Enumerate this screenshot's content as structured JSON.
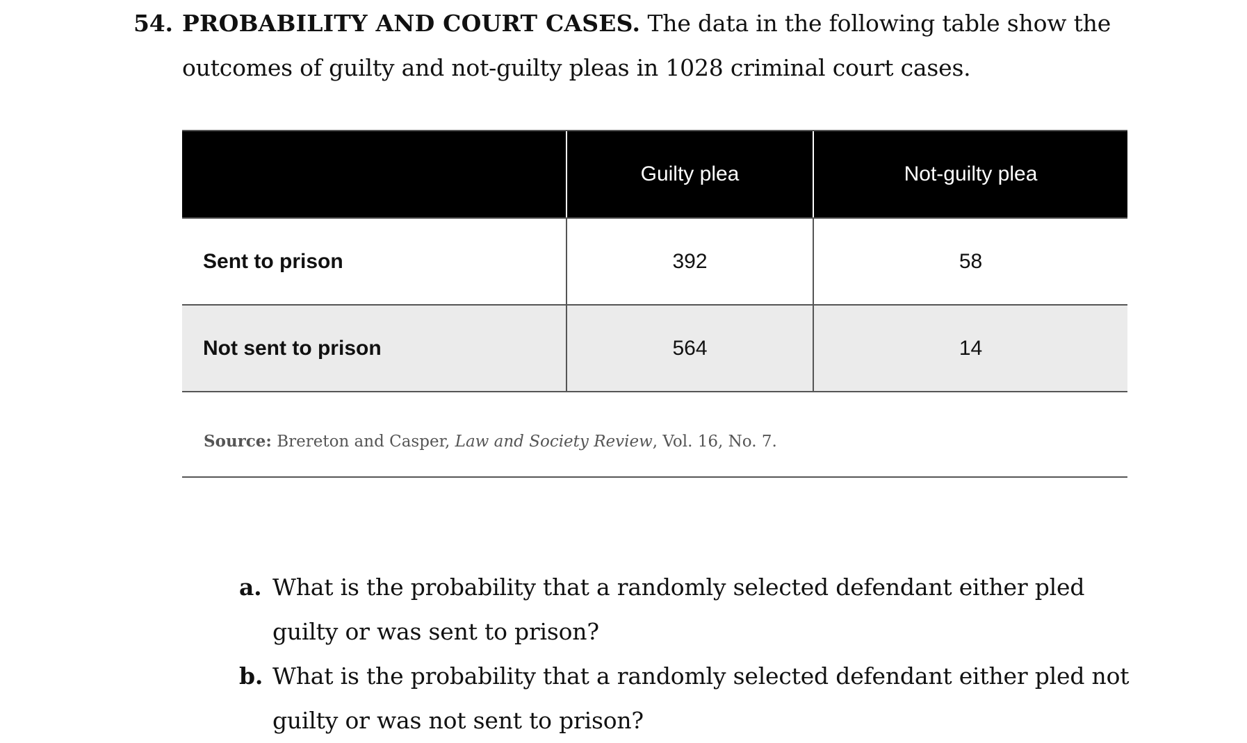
{
  "problem": {
    "number": "54.",
    "heading": "PROBABILITY AND COURT CASES.",
    "text": "The data in the following table show the outcomes of guilty and not-guilty pleas in 1028 criminal court cases."
  },
  "table": {
    "columns": [
      "",
      "Guilty plea",
      "Not-guilty plea"
    ],
    "rows": [
      {
        "label": "Sent to prison",
        "guilty": "392",
        "not_guilty": "58"
      },
      {
        "label": "Not sent to prison",
        "guilty": "564",
        "not_guilty": "14"
      }
    ],
    "header_bg": "#000000",
    "shaded_row_bg": "#ebebeb"
  },
  "source": {
    "label": "Source:",
    "authors": "Brereton and Casper,",
    "journal": "Law and Society Review",
    "details": ", Vol. 16, No. 7."
  },
  "questions": [
    {
      "letter": "a.",
      "text": "What is the probability that a randomly selected defendant either pled guilty or was sent to prison?"
    },
    {
      "letter": "b.",
      "text": "What is the probability that a randomly selected defendant either pled not guilty or was not sent to prison?"
    }
  ]
}
